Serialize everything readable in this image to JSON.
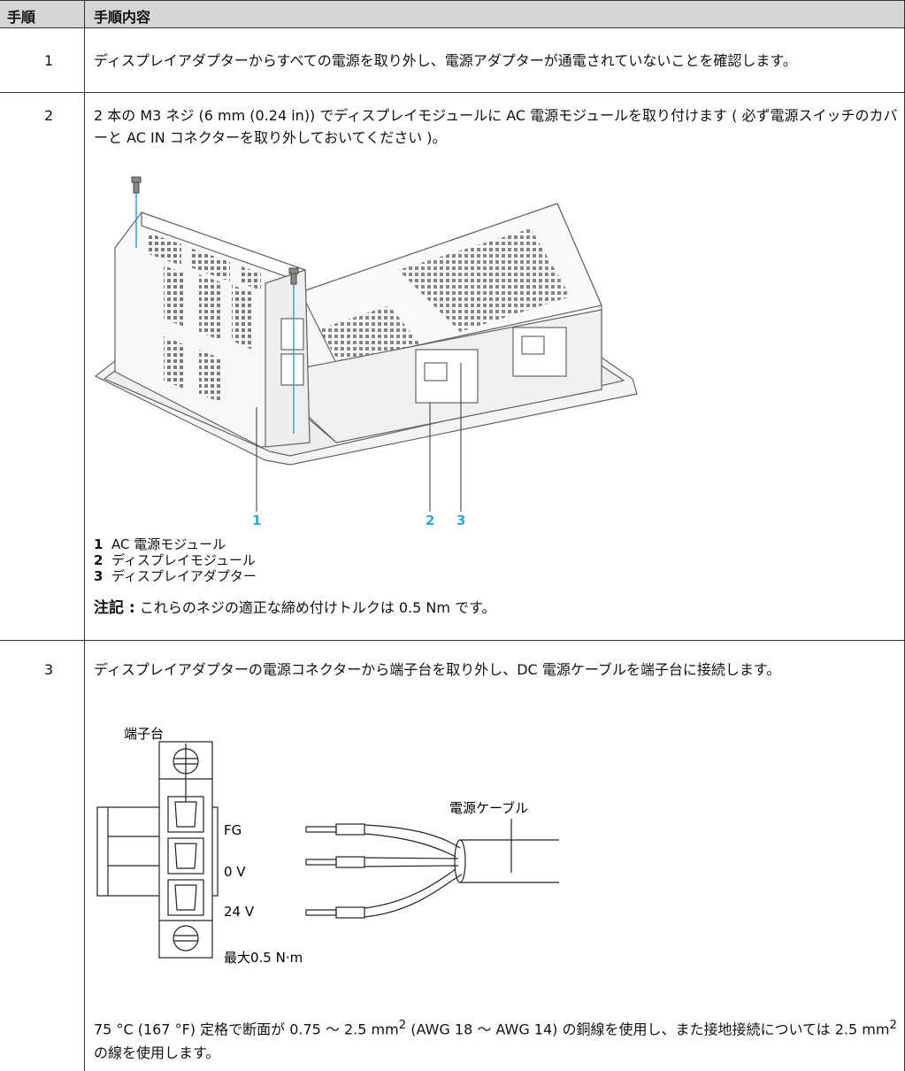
{
  "header": {
    "step": "手順",
    "content": "手順内容"
  },
  "rows": [
    {
      "step": "1",
      "text": "ディスプレイアダプターからすべての電源を取り外し、電源アダプターが通電されていないことを確認します。"
    },
    {
      "step": "2",
      "text": "2 本の M3 ネジ (6 mm (0.24 in)) でディスプレイモジュールに AC 電源モジュールを取り付けます ( 必ず電源スイッチのカバーと AC IN コネクターを取り外しておいてください )。",
      "callouts": [
        "1",
        "2",
        "3"
      ],
      "legend": [
        {
          "num": "1",
          "text": "AC 電源モジュール"
        },
        {
          "num": "2",
          "text": "ディスプレイモジュール"
        },
        {
          "num": "3",
          "text": "ディスプレイアダプター"
        }
      ],
      "note": {
        "label": "注記 :",
        "text": "これらのネジの適正な締め付けトルクは 0.5 Nm です。"
      }
    },
    {
      "step": "3",
      "text": "ディスプレイアダプターの電源コネクターから端子台を取り外し、DC 電源ケーブルを端子台に接続します。",
      "figure": {
        "terminal": "端子台",
        "cable": "電源ケーブル",
        "fg": "FG",
        "zero": "0 V",
        "v24": "24 V",
        "torque": "最大0.5 N·m"
      },
      "wire_note": {
        "text1": "75 °C (167 °F) 定格で断面が 0.75 ～ 2.5 mm",
        "sup1": "2",
        "text2": " (AWG 18 ～ AWG 14) の銅線を使用し、また接地接続については 2.5 mm",
        "sup2": "2",
        "text3": " の線を使用します。"
      }
    }
  ]
}
